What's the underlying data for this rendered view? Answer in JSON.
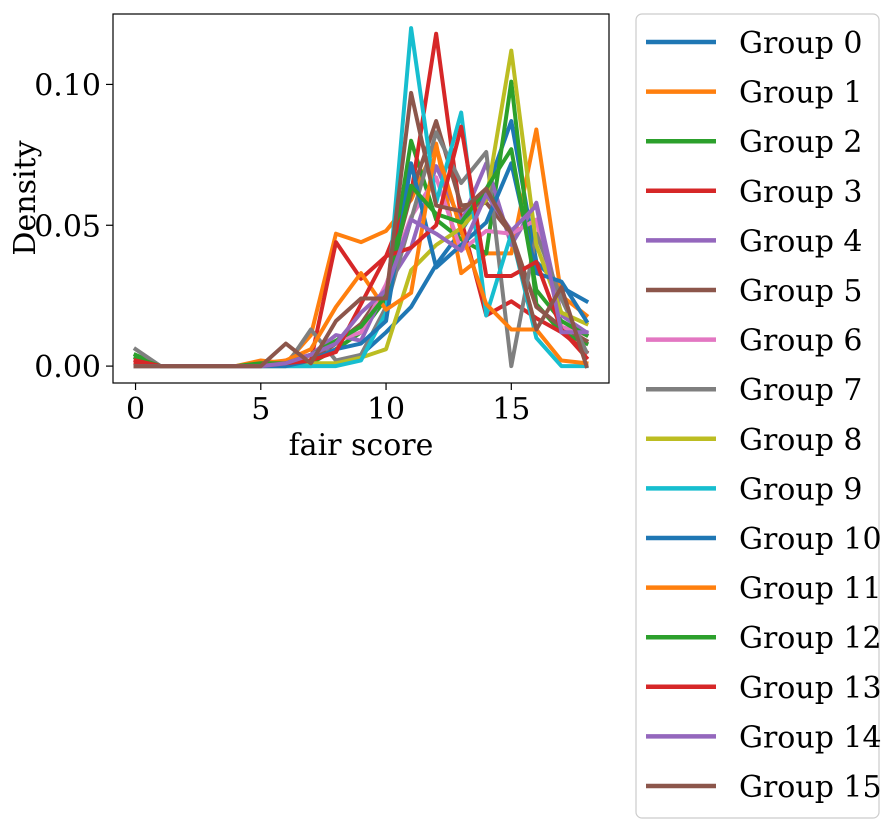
{
  "chart_data": {
    "type": "line",
    "title": "",
    "xlabel": "fair score",
    "ylabel": "Density",
    "xlim": [
      -0.9,
      18.9
    ],
    "ylim": [
      -0.006,
      0.125
    ],
    "xticks": [
      0,
      5,
      10,
      15
    ],
    "xtick_labels": [
      "0",
      "5",
      "10",
      "15"
    ],
    "yticks": [
      0.0,
      0.05,
      0.1
    ],
    "ytick_labels": [
      "0.00",
      "0.05",
      "0.10"
    ],
    "grid": false,
    "legend": "outside-right",
    "x": [
      0,
      1,
      2,
      3,
      4,
      5,
      6,
      7,
      8,
      9,
      10,
      11,
      12,
      13,
      14,
      15,
      16,
      17,
      18
    ],
    "series": [
      {
        "name": "Group 0",
        "color": "#1f77b4",
        "values": [
          0.0,
          0.0,
          0.0,
          0.0,
          0.0,
          0.0,
          0.0,
          0.0,
          0.001,
          0.004,
          0.012,
          0.021,
          0.036,
          0.048,
          0.062,
          0.087,
          0.037,
          0.028,
          0.023
        ]
      },
      {
        "name": "Group 1",
        "color": "#ff7f0e",
        "values": [
          0.0,
          0.0,
          0.0,
          0.0,
          0.0,
          0.002,
          0.001,
          0.011,
          0.047,
          0.044,
          0.048,
          0.059,
          0.079,
          0.033,
          0.04,
          0.04,
          0.084,
          0.025,
          0.018
        ]
      },
      {
        "name": "Group 2",
        "color": "#2ca02c",
        "values": [
          0.004,
          0.0,
          0.0,
          0.0,
          0.0,
          0.0,
          0.001,
          0.001,
          0.006,
          0.012,
          0.024,
          0.08,
          0.052,
          0.045,
          0.04,
          0.101,
          0.022,
          0.012,
          0.008
        ]
      },
      {
        "name": "Group 3",
        "color": "#d62728",
        "values": [
          0.001,
          0.0,
          0.0,
          0.0,
          0.0,
          0.0,
          0.001,
          0.002,
          0.044,
          0.031,
          0.039,
          0.061,
          0.118,
          0.052,
          0.018,
          0.023,
          0.017,
          0.012,
          0.005
        ]
      },
      {
        "name": "Group 4",
        "color": "#9467bd",
        "values": [
          0.0,
          0.0,
          0.0,
          0.0,
          0.0,
          0.0,
          0.002,
          0.004,
          0.011,
          0.009,
          0.028,
          0.042,
          0.071,
          0.051,
          0.072,
          0.043,
          0.058,
          0.018,
          0.012
        ]
      },
      {
        "name": "Group 5",
        "color": "#8c564b",
        "values": [
          0.0,
          0.0,
          0.0,
          0.0,
          0.0,
          0.0,
          0.001,
          0.002,
          0.008,
          0.015,
          0.028,
          0.061,
          0.087,
          0.057,
          0.058,
          0.047,
          0.021,
          0.014,
          0.009
        ]
      },
      {
        "name": "Group 6",
        "color": "#e377c2",
        "values": [
          0.0,
          0.0,
          0.0,
          0.0,
          0.0,
          0.0,
          0.002,
          0.004,
          0.009,
          0.012,
          0.029,
          0.053,
          0.067,
          0.041,
          0.048,
          0.047,
          0.052,
          0.014,
          0.011
        ]
      },
      {
        "name": "Group 7",
        "color": "#7f7f7f",
        "values": [
          0.006,
          0.0,
          0.0,
          0.0,
          0.0,
          0.0,
          0.0,
          0.013,
          0.002,
          0.004,
          0.021,
          0.052,
          0.083,
          0.065,
          0.076,
          0.0,
          0.047,
          0.024,
          0.005
        ]
      },
      {
        "name": "Group 8",
        "color": "#bcbd22",
        "values": [
          0.0,
          0.0,
          0.0,
          0.0,
          0.0,
          0.0,
          0.0,
          0.001,
          0.001,
          0.003,
          0.006,
          0.034,
          0.043,
          0.049,
          0.059,
          0.112,
          0.043,
          0.019,
          0.015
        ]
      },
      {
        "name": "Group 9",
        "color": "#17becf",
        "values": [
          0.0,
          0.0,
          0.0,
          0.0,
          0.0,
          0.0,
          0.0,
          0.0,
          0.0,
          0.002,
          0.019,
          0.12,
          0.058,
          0.09,
          0.018,
          0.047,
          0.01,
          0.0,
          0.0
        ]
      },
      {
        "name": "Group 10",
        "color": "#1f77b4",
        "values": [
          0.0,
          0.0,
          0.0,
          0.0,
          0.0,
          0.0,
          0.0,
          0.002,
          0.006,
          0.008,
          0.016,
          0.072,
          0.035,
          0.043,
          0.051,
          0.072,
          0.033,
          0.03,
          0.016
        ]
      },
      {
        "name": "Group 11",
        "color": "#ff7f0e",
        "values": [
          0.0,
          0.0,
          0.0,
          0.0,
          0.0,
          0.001,
          0.002,
          0.006,
          0.021,
          0.033,
          0.02,
          0.026,
          0.078,
          0.048,
          0.022,
          0.013,
          0.013,
          0.002,
          0.001
        ]
      },
      {
        "name": "Group 12",
        "color": "#2ca02c",
        "values": [
          0.003,
          0.0,
          0.0,
          0.0,
          0.0,
          0.001,
          0.001,
          0.004,
          0.009,
          0.014,
          0.025,
          0.064,
          0.054,
          0.051,
          0.063,
          0.077,
          0.027,
          0.016,
          0.011
        ]
      },
      {
        "name": "Group 13",
        "color": "#d62728",
        "values": [
          0.002,
          0.0,
          0.0,
          0.0,
          0.0,
          0.0,
          0.001,
          0.002,
          0.005,
          0.022,
          0.039,
          0.042,
          0.05,
          0.085,
          0.032,
          0.032,
          0.037,
          0.013,
          0.003
        ]
      },
      {
        "name": "Group 14",
        "color": "#9467bd",
        "values": [
          0.0,
          0.0,
          0.0,
          0.0,
          0.0,
          0.0,
          0.001,
          0.004,
          0.008,
          0.019,
          0.027,
          0.052,
          0.047,
          0.041,
          0.061,
          0.048,
          0.057,
          0.012,
          0.012
        ]
      },
      {
        "name": "Group 15",
        "color": "#8c564b",
        "values": [
          0.0,
          0.0,
          0.0,
          0.0,
          0.0,
          0.0,
          0.008,
          0.001,
          0.016,
          0.024,
          0.024,
          0.097,
          0.057,
          0.055,
          0.063,
          0.047,
          0.013,
          0.028,
          0.0
        ]
      }
    ]
  }
}
